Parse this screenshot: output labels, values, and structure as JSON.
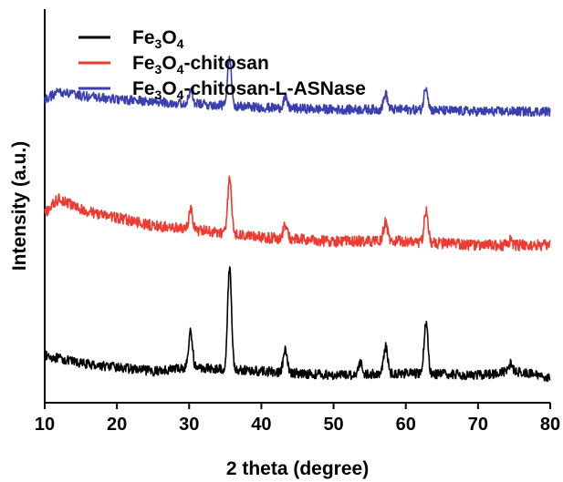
{
  "chart_data": {
    "type": "line",
    "xlabel": "2 theta (degree)",
    "ylabel": "Intensity (a.u.)",
    "xlim": [
      10,
      80
    ],
    "x_ticks": [
      "10",
      "20",
      "30",
      "40",
      "50",
      "60",
      "70",
      "80"
    ],
    "y_ticks_labeled": false,
    "grid": false,
    "legend_position": "top-left",
    "series": [
      {
        "name": "Fe3O4",
        "legend_parts": [
          [
            "Fe",
            "n"
          ],
          [
            "3",
            "sub"
          ],
          [
            "O",
            "n"
          ],
          [
            "4",
            "sub"
          ]
        ],
        "color": "#000000",
        "baseline": 0.08,
        "noise": 0.012,
        "points": [
          [
            10,
            0.12
          ],
          [
            15,
            0.1
          ],
          [
            20,
            0.09
          ],
          [
            25,
            0.08
          ],
          [
            30,
            0.09
          ],
          [
            40,
            0.08
          ],
          [
            50,
            0.07
          ],
          [
            60,
            0.075
          ],
          [
            70,
            0.07
          ],
          [
            75,
            0.08
          ],
          [
            80,
            0.065
          ]
        ],
        "peaks": [
          [
            30.2,
            0.09
          ],
          [
            35.6,
            0.26
          ],
          [
            43.3,
            0.055
          ],
          [
            53.7,
            0.03
          ],
          [
            57.2,
            0.07
          ],
          [
            62.8,
            0.13
          ],
          [
            74.5,
            0.02
          ]
        ]
      },
      {
        "name": "Fe3O4-chitosan",
        "legend_parts": [
          [
            "Fe",
            "n"
          ],
          [
            "3",
            "sub"
          ],
          [
            "O",
            "n"
          ],
          [
            "4",
            "sub"
          ],
          [
            "-chitosan",
            "n"
          ]
        ],
        "color": "#ee3a30",
        "baseline": 0.42,
        "noise": 0.014,
        "points": [
          [
            10,
            0.48
          ],
          [
            12,
            0.52
          ],
          [
            15,
            0.49
          ],
          [
            20,
            0.47
          ],
          [
            25,
            0.45
          ],
          [
            30,
            0.44
          ],
          [
            40,
            0.42
          ],
          [
            50,
            0.41
          ],
          [
            60,
            0.41
          ],
          [
            70,
            0.4
          ],
          [
            80,
            0.4
          ]
        ],
        "peaks": [
          [
            30.2,
            0.05
          ],
          [
            35.6,
            0.14
          ],
          [
            43.3,
            0.035
          ],
          [
            57.2,
            0.05
          ],
          [
            62.8,
            0.08
          ],
          [
            74.5,
            0.012
          ]
        ]
      },
      {
        "name": "Fe3O4-chitosan-L-ASNase",
        "legend_parts": [
          [
            "Fe",
            "n"
          ],
          [
            "3",
            "sub"
          ],
          [
            "O",
            "n"
          ],
          [
            "4",
            "sub"
          ],
          [
            "-chitosan-L-ASNase",
            "n"
          ]
        ],
        "color": "#3a3eae",
        "baseline": 0.77,
        "noise": 0.012,
        "points": [
          [
            10,
            0.77
          ],
          [
            12,
            0.79
          ],
          [
            15,
            0.78
          ],
          [
            20,
            0.77
          ],
          [
            30,
            0.76
          ],
          [
            40,
            0.75
          ],
          [
            50,
            0.745
          ],
          [
            60,
            0.745
          ],
          [
            70,
            0.74
          ],
          [
            80,
            0.74
          ]
        ],
        "peaks": [
          [
            30.2,
            0.03
          ],
          [
            35.6,
            0.12
          ],
          [
            43.3,
            0.025
          ],
          [
            57.2,
            0.04
          ],
          [
            62.8,
            0.06
          ]
        ]
      }
    ]
  }
}
